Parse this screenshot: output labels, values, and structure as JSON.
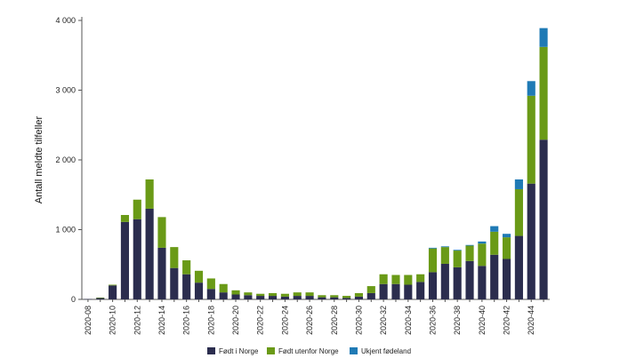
{
  "chart_data": {
    "type": "bar",
    "stacked": true,
    "title": "",
    "xlabel": "",
    "ylabel": "Antall meldte tilfeller",
    "ylim": [
      0,
      4000
    ],
    "yticks": [
      0,
      1000,
      2000,
      3000,
      4000
    ],
    "ytick_labels": [
      "0",
      "1 000",
      "2 000",
      "3 000",
      "4 000"
    ],
    "categories": [
      "2020-08",
      "2020-09",
      "2020-10",
      "2020-11",
      "2020-12",
      "2020-13",
      "2020-14",
      "2020-15",
      "2020-16",
      "2020-17",
      "2020-18",
      "2020-19",
      "2020-20",
      "2020-21",
      "2020-22",
      "2020-23",
      "2020-24",
      "2020-25",
      "2020-26",
      "2020-27",
      "2020-28",
      "2020-29",
      "2020-30",
      "2020-31",
      "2020-32",
      "2020-33",
      "2020-34",
      "2020-35",
      "2020-36",
      "2020-37",
      "2020-38",
      "2020-39",
      "2020-40",
      "2020-41",
      "2020-42",
      "2020-43",
      "2020-44",
      "2020-45"
    ],
    "xtick_labels": [
      "2020-08",
      "",
      "2020-10",
      "",
      "2020-12",
      "",
      "2020-14",
      "",
      "2020-16",
      "",
      "2020-18",
      "",
      "2020-20",
      "",
      "2020-22",
      "",
      "2020-24",
      "",
      "2020-26",
      "",
      "2020-28",
      "",
      "2020-30",
      "",
      "2020-32",
      "",
      "2020-34",
      "",
      "2020-36",
      "",
      "2020-38",
      "",
      "2020-40",
      "",
      "2020-42",
      "",
      "2020-44",
      ""
    ],
    "series": [
      {
        "name": "Født i Norge",
        "color": "#2b2d4e",
        "values": [
          5,
          20,
          200,
          1110,
          1150,
          1300,
          740,
          450,
          360,
          240,
          150,
          100,
          70,
          60,
          50,
          50,
          40,
          50,
          50,
          30,
          30,
          20,
          40,
          90,
          220,
          220,
          210,
          250,
          390,
          510,
          460,
          550,
          480,
          640,
          580,
          910,
          1660,
          2290
        ]
      },
      {
        "name": "Født utenfor Norge",
        "color": "#6a9a17",
        "values": [
          0,
          5,
          10,
          100,
          280,
          420,
          440,
          300,
          200,
          170,
          150,
          120,
          60,
          40,
          30,
          40,
          40,
          50,
          50,
          30,
          30,
          30,
          50,
          100,
          140,
          130,
          140,
          110,
          340,
          240,
          240,
          220,
          320,
          330,
          310,
          670,
          1260,
          1330
        ]
      },
      {
        "name": "Ukjent fødeland",
        "color": "#1f7ab5",
        "values": [
          0,
          0,
          0,
          0,
          0,
          0,
          0,
          0,
          0,
          0,
          0,
          0,
          0,
          0,
          0,
          0,
          0,
          0,
          0,
          0,
          0,
          0,
          0,
          0,
          0,
          0,
          0,
          0,
          10,
          10,
          10,
          10,
          30,
          80,
          50,
          140,
          210,
          270
        ]
      }
    ],
    "legend": {
      "position": "bottom"
    },
    "grid": false
  }
}
